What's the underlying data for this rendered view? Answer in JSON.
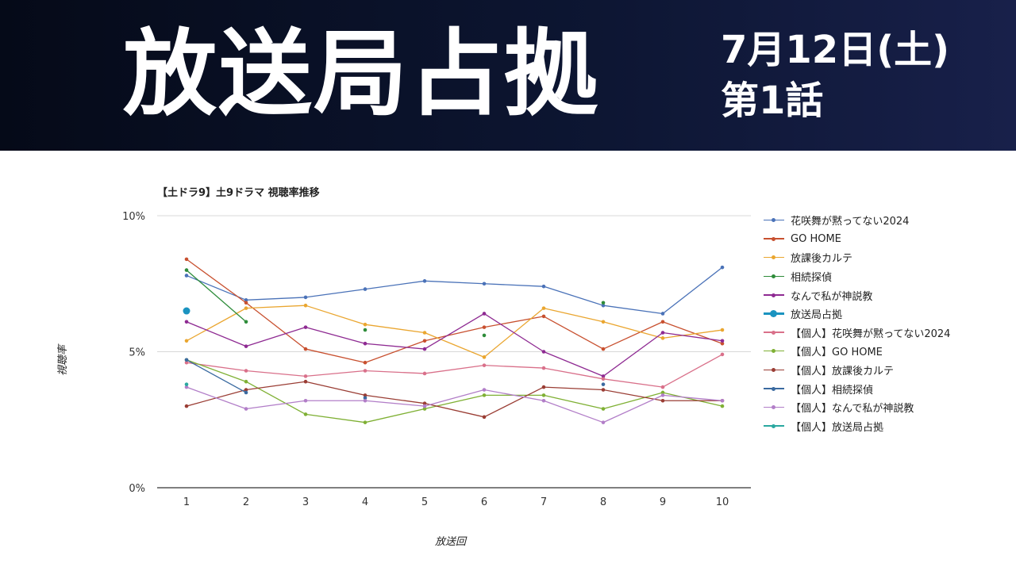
{
  "banner": {
    "title": "放送局占拠",
    "date": "7月12日(土)",
    "episode": "第1話"
  },
  "chart_data": {
    "type": "line",
    "title": "【土ドラ9】土9ドラマ 視聴率推移",
    "xlabel": "放送回",
    "ylabel": "視聴率",
    "categories": [
      "1",
      "2",
      "3",
      "4",
      "5",
      "6",
      "7",
      "8",
      "9",
      "10"
    ],
    "y_ticks": [
      "0%",
      "5%",
      "10%"
    ],
    "ylim": [
      0,
      10
    ],
    "grid": true,
    "legend_position": "right",
    "series": [
      {
        "name": "花咲舞が黙ってない2024",
        "color": "#4a72b8",
        "values": [
          7.8,
          6.9,
          7.0,
          7.3,
          7.6,
          7.5,
          7.4,
          6.7,
          6.4,
          8.1
        ]
      },
      {
        "name": "GO HOME",
        "color": "#c8502f",
        "values": [
          8.4,
          6.8,
          5.1,
          4.6,
          5.4,
          5.9,
          6.3,
          5.1,
          6.1,
          5.3
        ]
      },
      {
        "name": "放課後カルテ",
        "color": "#eaa630",
        "values": [
          5.4,
          6.6,
          6.7,
          6.0,
          5.7,
          4.8,
          6.6,
          6.1,
          5.5,
          5.8
        ]
      },
      {
        "name": "相続探偵",
        "color": "#2e8c3a",
        "values": [
          8.0,
          6.1,
          null,
          5.8,
          null,
          5.6,
          null,
          6.8,
          null,
          null
        ]
      },
      {
        "name": "なんで私が神説教",
        "color": "#8e2a92",
        "values": [
          6.1,
          5.2,
          5.9,
          5.3,
          5.1,
          6.4,
          5.0,
          4.1,
          5.7,
          5.4
        ]
      },
      {
        "name": "放送局占拠",
        "color": "#1a93c0",
        "values": [
          6.5,
          null,
          null,
          null,
          null,
          null,
          null,
          null,
          null,
          null
        ],
        "highlight": true
      },
      {
        "name": "【個人】花咲舞が黙ってない2024",
        "color": "#d9708a",
        "values": [
          4.6,
          4.3,
          4.1,
          4.3,
          4.2,
          4.5,
          4.4,
          4.0,
          3.7,
          4.9
        ]
      },
      {
        "name": "【個人】GO HOME",
        "color": "#7fb034",
        "values": [
          4.7,
          3.9,
          2.7,
          2.4,
          2.9,
          3.4,
          3.4,
          2.9,
          3.5,
          3.0
        ]
      },
      {
        "name": "【個人】放課後カルテ",
        "color": "#9a3d34",
        "values": [
          3.0,
          3.6,
          3.9,
          3.4,
          3.1,
          2.6,
          3.7,
          3.6,
          3.2,
          3.2
        ]
      },
      {
        "name": "【個人】相続探偵",
        "color": "#3a6aa0",
        "values": [
          4.7,
          3.5,
          null,
          3.3,
          null,
          null,
          null,
          3.8,
          null,
          null
        ]
      },
      {
        "name": "【個人】なんで私が神説教",
        "color": "#b27ec8",
        "values": [
          3.7,
          2.9,
          3.2,
          3.2,
          3.0,
          3.6,
          3.2,
          2.4,
          3.4,
          3.2
        ]
      },
      {
        "name": "【個人】放送局占拠",
        "color": "#2aa8a0",
        "values": [
          3.8,
          null,
          null,
          null,
          null,
          null,
          null,
          null,
          null,
          null
        ]
      }
    ]
  }
}
